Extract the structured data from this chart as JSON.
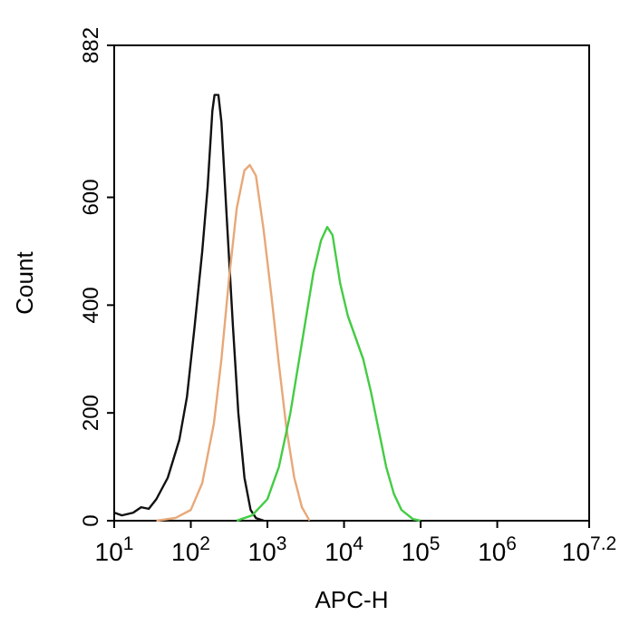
{
  "chart_data": {
    "type": "line",
    "xlabel": "APC-H",
    "ylabel": "Count",
    "log": "x",
    "grid": false,
    "marker": "none",
    "line_style": "solid",
    "xlim": [
      10,
      15848932
    ],
    "ylim": [
      0,
      882
    ],
    "xticks": [
      {
        "value": 10,
        "label": "10$^{1}$"
      },
      {
        "value": 100,
        "label": "10$^{2}$"
      },
      {
        "value": 1000,
        "label": "10$^{3}$"
      },
      {
        "value": 10000,
        "label": "10$^{4}$"
      },
      {
        "value": 100000,
        "label": "10$^{5}$"
      },
      {
        "value": 1000000,
        "label": "10$^{6}$"
      },
      {
        "value": 15848932,
        "label": "10$^{7.2}$"
      }
    ],
    "yticks": [
      0,
      200,
      400,
      600,
      882
    ],
    "series": [
      {
        "color": "#111111",
        "x": [
          10,
          12.6,
          17.8,
          22.4,
          28.2,
          35.5,
          50.1,
          70.8,
          89.1,
          112,
          141,
          166,
          191,
          204,
          229,
          251,
          295,
          355,
          417,
          501,
          603,
          708,
          891
        ],
        "values": [
          15,
          10,
          15,
          25,
          22,
          40,
          80,
          150,
          230,
          360,
          500,
          620,
          760,
          790,
          790,
          740,
          560,
          360,
          200,
          80,
          20,
          5,
          0
        ]
      },
      {
        "color": "#e8a878",
        "x": [
          35.5,
          63.1,
          100,
          141,
          200,
          251,
          316,
          398,
          501,
          589,
          708,
          891,
          1122,
          1413,
          1778,
          2239,
          2818,
          3548
        ],
        "values": [
          0,
          5,
          20,
          70,
          180,
          300,
          450,
          580,
          650,
          660,
          640,
          540,
          420,
          290,
          170,
          80,
          25,
          0
        ]
      },
      {
        "color": "#44cc44",
        "x": [
          398,
          631,
          1000,
          1413,
          1995,
          2818,
          3981,
          5012,
          6026,
          7079,
          8913,
          11220,
          14130,
          17780,
          22390,
          28180,
          35480,
          44670,
          56230,
          79430,
          100000
        ],
        "values": [
          0,
          10,
          40,
          100,
          200,
          330,
          460,
          520,
          545,
          530,
          440,
          380,
          340,
          300,
          240,
          170,
          100,
          50,
          20,
          3,
          0
        ]
      }
    ]
  }
}
